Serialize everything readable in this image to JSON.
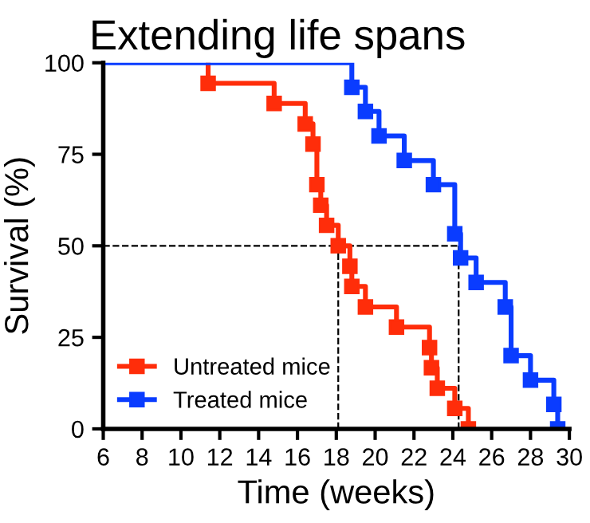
{
  "chart_data": {
    "type": "step",
    "title": "Extending life spans",
    "xlabel": "Time (weeks)",
    "ylabel": "Survival (%)",
    "series": [
      {
        "name": "Untreated mice",
        "color": "#ff2d0a",
        "x": [
          11.4,
          11.4,
          14.8,
          16.4,
          16.8,
          17.0,
          17.2,
          17.5,
          18.1,
          18.7,
          18.8,
          19.5,
          21.1,
          22.8,
          22.9,
          23.2,
          24.1,
          24.8
        ],
        "values": [
          100,
          94.4,
          88.9,
          83.3,
          77.8,
          66.7,
          61.1,
          55.6,
          50,
          44.4,
          38.9,
          33.3,
          27.8,
          22.2,
          16.7,
          11.1,
          5.6,
          0
        ]
      },
      {
        "name": "Treated mice",
        "color": "#0a3cff",
        "x": [
          6,
          18.8,
          19.5,
          20.2,
          21.5,
          23.0,
          24.1,
          24.4,
          25.2,
          26.7,
          27.0,
          28.0,
          29.2,
          29.4
        ],
        "values": [
          100,
          93.3,
          86.7,
          80,
          73.3,
          66.7,
          53.3,
          46.7,
          40,
          33.3,
          20,
          13.3,
          6.7,
          0
        ]
      }
    ],
    "ref_lines": [
      {
        "axis": "y",
        "value": 50,
        "line_style": "dashed",
        "color": "#000000"
      },
      {
        "axis": "x",
        "value": 18.1,
        "line_style": "dashed",
        "color": "#000000"
      },
      {
        "axis": "x",
        "value": 24.3,
        "line_style": "dashed",
        "color": "#000000"
      }
    ],
    "xlim": [
      6,
      30
    ],
    "xticks": [
      6,
      8,
      10,
      12,
      14,
      16,
      18,
      20,
      22,
      24,
      26,
      28,
      30
    ],
    "ylim": [
      0,
      100
    ],
    "yticks": [
      0,
      25,
      50,
      75,
      100
    ],
    "marker": "square",
    "line_style": "solid",
    "legend": "bottom left",
    "grid": false
  }
}
